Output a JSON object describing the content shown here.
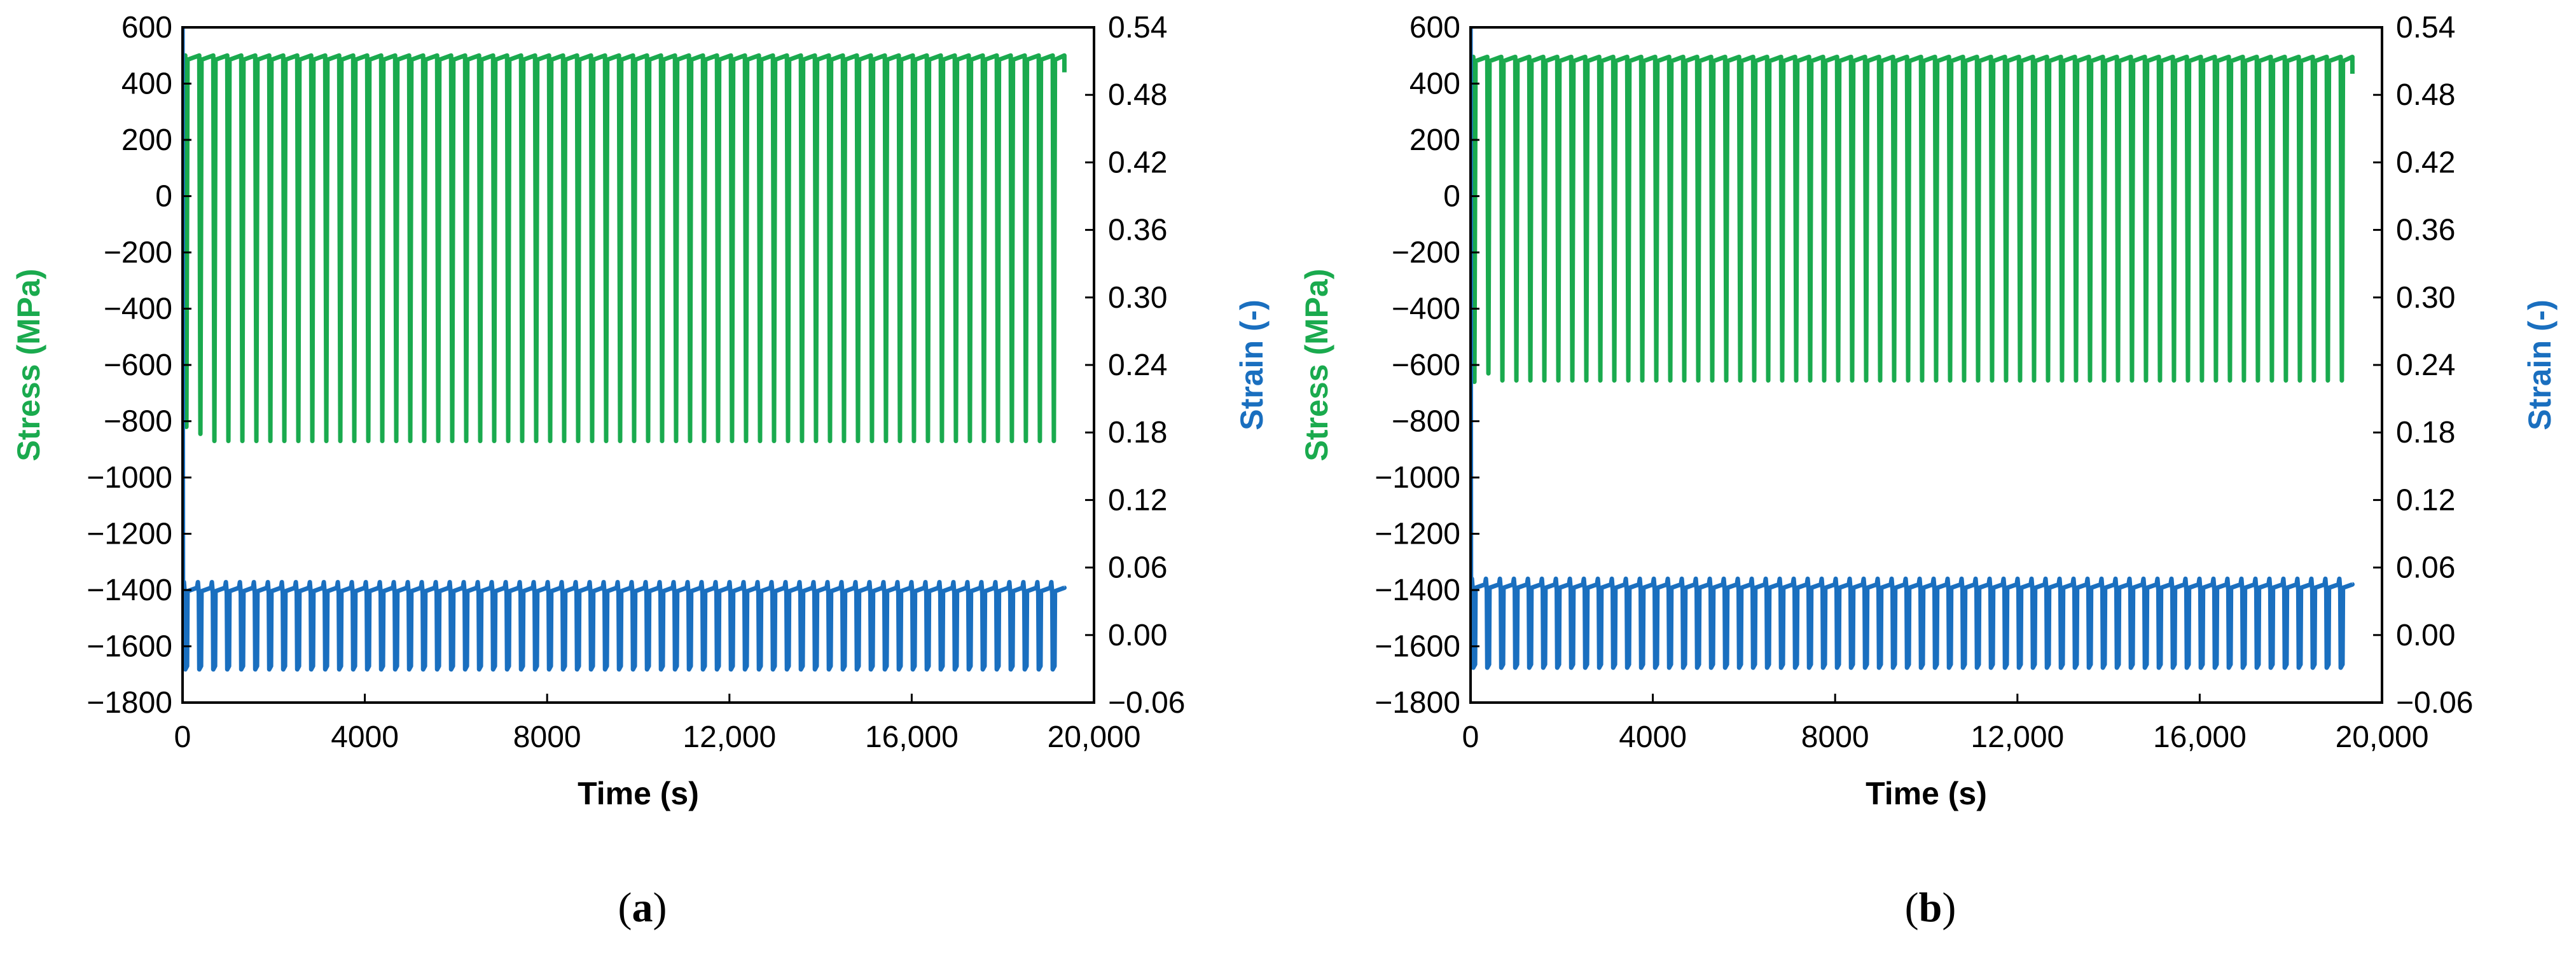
{
  "chart_data": [
    {
      "type": "line",
      "panel_label": "a",
      "xlabel": "Time (s)",
      "ylabel_left": "Stress (MPa)",
      "ylabel_right": "Strain (-)",
      "xlim": [
        0,
        20000
      ],
      "ylim_left": [
        -1800,
        600
      ],
      "ylim_right": [
        -0.06,
        0.54
      ],
      "x_ticks": [
        "0",
        "4000",
        "8000",
        "12,000",
        "16,000",
        "20,000"
      ],
      "y_ticks_left": [
        "600",
        "400",
        "200",
        "0",
        "−200",
        "−400",
        "−600",
        "−800",
        "−1000",
        "−1200",
        "−1400",
        "−1600",
        "−1800"
      ],
      "y_ticks_right": [
        "0.54",
        "0.48",
        "0.42",
        "0.36",
        "0.30",
        "0.24",
        "0.18",
        "0.12",
        "0.06",
        "0.00",
        "−0.06"
      ],
      "grid": false,
      "series": [
        {
          "axis": "left",
          "color": "#1aaa4e",
          "cycle_count": 63,
          "cycle_period_s": 307,
          "t_end": 19350,
          "initial_peak_stress": 600,
          "initial_valley_stress": -740,
          "max_stress_stable": 500,
          "min_stress_stable": -870
        },
        {
          "axis": "right",
          "color": "#1a6fbf",
          "cycle_count": 63,
          "cycle_period_s": 307,
          "t_end": 19350,
          "initial_peak_strain": 0.54,
          "max_strain_stable": 0.047,
          "min_strain_stable": -0.0305,
          "plateau_strain": 0.042
        }
      ]
    },
    {
      "type": "line",
      "panel_label": "b",
      "xlabel": "Time (s)",
      "ylabel_left": "Stress (MPa)",
      "ylabel_right": "Strain (-)",
      "xlim": [
        0,
        20000
      ],
      "ylim_left": [
        -1800,
        600
      ],
      "ylim_right": [
        -0.06,
        0.54
      ],
      "x_ticks": [
        "0",
        "4000",
        "8000",
        "12,000",
        "16,000",
        "20,000"
      ],
      "y_ticks_left": [
        "600",
        "400",
        "200",
        "0",
        "−200",
        "−400",
        "−600",
        "−800",
        "−1000",
        "−1200",
        "−1400",
        "−1600",
        "−1800"
      ],
      "y_ticks_right": [
        "0.54",
        "0.48",
        "0.42",
        "0.36",
        "0.30",
        "0.24",
        "0.18",
        "0.12",
        "0.06",
        "0.00",
        "−0.06"
      ],
      "grid": false,
      "series": [
        {
          "axis": "left",
          "color": "#1aaa4e",
          "cycle_count": 63,
          "cycle_period_s": 307,
          "t_end": 19350,
          "initial_peak_stress": 600,
          "initial_valley_stress": -580,
          "max_stress_stable": 495,
          "min_stress_stable": -655
        },
        {
          "axis": "right",
          "color": "#1a6fbf",
          "cycle_count": 63,
          "cycle_period_s": 307,
          "t_end": 19350,
          "initial_peak_strain": 0.54,
          "max_strain_stable": 0.05,
          "min_strain_stable": -0.029,
          "plateau_strain": 0.045
        }
      ]
    }
  ]
}
